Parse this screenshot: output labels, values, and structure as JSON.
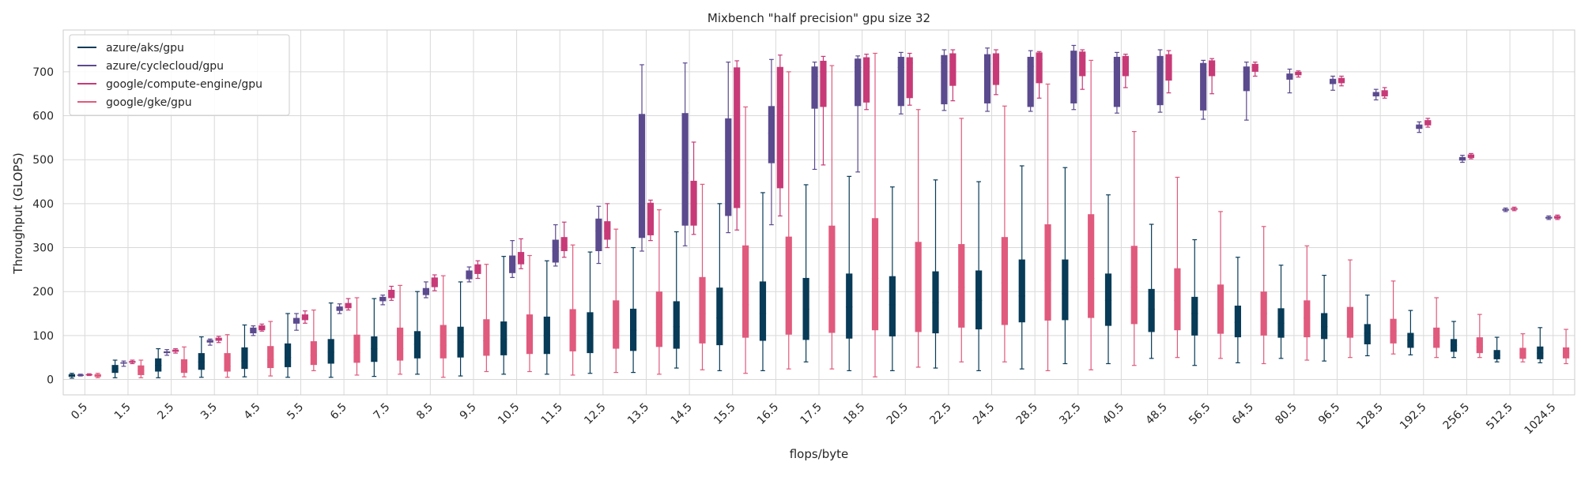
{
  "chart_data": {
    "type": "box",
    "title": "Mixbench \"half precision\" gpu size 32",
    "xlabel": "flops/byte",
    "ylabel": "Throughput (GLOPS)",
    "ylim": [
      -35,
      795
    ],
    "yticks": [
      0,
      100,
      200,
      300,
      400,
      500,
      600,
      700
    ],
    "grid": true,
    "legend_position": "top-left",
    "categories": [
      "0.5",
      "1.5",
      "2.5",
      "3.5",
      "4.5",
      "5.5",
      "6.5",
      "7.5",
      "8.5",
      "9.5",
      "10.5",
      "11.5",
      "12.5",
      "13.5",
      "14.5",
      "15.5",
      "16.5",
      "17.5",
      "18.5",
      "20.5",
      "22.5",
      "24.5",
      "28.5",
      "32.5",
      "40.5",
      "48.5",
      "56.5",
      "64.5",
      "80.5",
      "96.5",
      "128.5",
      "192.5",
      "256.5",
      "512.5",
      "1024.5"
    ],
    "series": [
      {
        "name": "azure/aks/gpu",
        "color": "#073b57",
        "boxes": [
          [
            3,
            6,
            8,
            12,
            14
          ],
          [
            4,
            15,
            25,
            33,
            44
          ],
          [
            4,
            18,
            32,
            48,
            70
          ],
          [
            5,
            22,
            40,
            60,
            97
          ],
          [
            6,
            24,
            42,
            73,
            124
          ],
          [
            5,
            28,
            50,
            82,
            150
          ],
          [
            5,
            36,
            62,
            92,
            174
          ],
          [
            7,
            40,
            70,
            98,
            184
          ],
          [
            12,
            48,
            80,
            110,
            200
          ],
          [
            8,
            50,
            85,
            120,
            222
          ],
          [
            12,
            55,
            92,
            132,
            280
          ],
          [
            12,
            58,
            100,
            143,
            270
          ],
          [
            14,
            60,
            105,
            153,
            290
          ],
          [
            16,
            65,
            112,
            161,
            300
          ],
          [
            26,
            70,
            120,
            178,
            336
          ],
          [
            20,
            78,
            140,
            209,
            400
          ],
          [
            20,
            88,
            150,
            223,
            425
          ],
          [
            40,
            90,
            160,
            231,
            443
          ],
          [
            20,
            93,
            165,
            241,
            462
          ],
          [
            20,
            98,
            170,
            235,
            438
          ],
          [
            26,
            105,
            175,
            246,
            454
          ],
          [
            20,
            114,
            180,
            248,
            450
          ],
          [
            24,
            130,
            190,
            273,
            486
          ],
          [
            36,
            135,
            195,
            273,
            482
          ],
          [
            36,
            122,
            180,
            241,
            420
          ],
          [
            48,
            108,
            160,
            206,
            353
          ],
          [
            32,
            100,
            150,
            188,
            318
          ],
          [
            38,
            96,
            130,
            168,
            278
          ],
          [
            48,
            95,
            128,
            162,
            260
          ],
          [
            42,
            92,
            120,
            151,
            237
          ],
          [
            54,
            80,
            105,
            126,
            192
          ],
          [
            56,
            72,
            90,
            106,
            157
          ],
          [
            50,
            63,
            78,
            92,
            132
          ],
          [
            40,
            46,
            55,
            67,
            96
          ],
          [
            38,
            46,
            60,
            75,
            118
          ]
        ]
      },
      {
        "name": "azure/cyclecloud/gpu",
        "color": "#5b4a8e",
        "boxes": [
          [
            8,
            9,
            10,
            11,
            12
          ],
          [
            30,
            36,
            38,
            39,
            42
          ],
          [
            55,
            60,
            62,
            64,
            68
          ],
          [
            78,
            84,
            86,
            90,
            92
          ],
          [
            100,
            105,
            112,
            118,
            122
          ],
          [
            112,
            127,
            132,
            140,
            150
          ],
          [
            150,
            156,
            160,
            166,
            172
          ],
          [
            170,
            178,
            182,
            188,
            192
          ],
          [
            186,
            192,
            200,
            208,
            222
          ],
          [
            222,
            228,
            236,
            248,
            256
          ],
          [
            232,
            242,
            262,
            282,
            316
          ],
          [
            258,
            266,
            292,
            318,
            352
          ],
          [
            264,
            292,
            338,
            366,
            394
          ],
          [
            292,
            322,
            520,
            604,
            716
          ],
          [
            304,
            350,
            470,
            606,
            720
          ],
          [
            334,
            372,
            520,
            594,
            722
          ],
          [
            352,
            492,
            560,
            622,
            728
          ],
          [
            478,
            616,
            690,
            712,
            722
          ],
          [
            472,
            622,
            710,
            730,
            736
          ],
          [
            604,
            622,
            710,
            734,
            744
          ],
          [
            612,
            626,
            720,
            738,
            750
          ],
          [
            610,
            628,
            718,
            740,
            754
          ],
          [
            610,
            620,
            712,
            734,
            748
          ],
          [
            614,
            628,
            728,
            748,
            760
          ],
          [
            606,
            620,
            722,
            734,
            744
          ],
          [
            608,
            624,
            722,
            736,
            750
          ],
          [
            592,
            612,
            700,
            720,
            726
          ],
          [
            590,
            656,
            700,
            712,
            722
          ],
          [
            652,
            682,
            690,
            696,
            706
          ],
          [
            658,
            672,
            676,
            684,
            690
          ],
          [
            636,
            644,
            648,
            654,
            660
          ],
          [
            562,
            570,
            574,
            580,
            586
          ],
          [
            494,
            498,
            502,
            506,
            510
          ],
          [
            382,
            384,
            386,
            388,
            390
          ],
          [
            364,
            366,
            368,
            370,
            372
          ]
        ]
      },
      {
        "name": "google/compute-engine/gpu",
        "color": "#c73a77",
        "boxes": [
          [
            9,
            10,
            11,
            12,
            13
          ],
          [
            36,
            38,
            40,
            42,
            44
          ],
          [
            60,
            63,
            65,
            68,
            70
          ],
          [
            84,
            88,
            92,
            95,
            98
          ],
          [
            110,
            112,
            118,
            123,
            126
          ],
          [
            128,
            135,
            140,
            148,
            156
          ],
          [
            158,
            162,
            166,
            174,
            184
          ],
          [
            180,
            185,
            195,
            204,
            212
          ],
          [
            202,
            210,
            220,
            232,
            238
          ],
          [
            230,
            240,
            248,
            262,
            270
          ],
          [
            252,
            262,
            272,
            290,
            320
          ],
          [
            278,
            292,
            304,
            324,
            358
          ],
          [
            300,
            318,
            338,
            360,
            400
          ],
          [
            316,
            328,
            365,
            402,
            408
          ],
          [
            330,
            350,
            400,
            452,
            540
          ],
          [
            340,
            390,
            500,
            710,
            725
          ],
          [
            372,
            435,
            620,
            711,
            738
          ],
          [
            488,
            620,
            700,
            725,
            735
          ],
          [
            614,
            630,
            712,
            733,
            740
          ],
          [
            624,
            640,
            720,
            733,
            742
          ],
          [
            634,
            668,
            724,
            742,
            750
          ],
          [
            648,
            670,
            732,
            742,
            750
          ],
          [
            640,
            674,
            728,
            744,
            746
          ],
          [
            660,
            690,
            736,
            746,
            750
          ],
          [
            664,
            690,
            728,
            736,
            740
          ],
          [
            652,
            680,
            730,
            740,
            748
          ],
          [
            650,
            690,
            716,
            726,
            730
          ],
          [
            690,
            700,
            710,
            718,
            722
          ],
          [
            688,
            692,
            696,
            700,
            702
          ],
          [
            668,
            674,
            680,
            686,
            690
          ],
          [
            640,
            644,
            652,
            658,
            664
          ],
          [
            574,
            578,
            584,
            590,
            594
          ],
          [
            502,
            504,
            508,
            512,
            514
          ],
          [
            384,
            386,
            388,
            390,
            392
          ],
          [
            364,
            366,
            370,
            372,
            374
          ]
        ]
      },
      {
        "name": "google/gke/gpu",
        "color": "#e05a7d",
        "boxes": [
          [
            4,
            6,
            9,
            12,
            14
          ],
          [
            4,
            10,
            20,
            32,
            44
          ],
          [
            6,
            15,
            26,
            46,
            74
          ],
          [
            5,
            18,
            30,
            60,
            102
          ],
          [
            8,
            26,
            45,
            76,
            132
          ],
          [
            20,
            33,
            55,
            87,
            158
          ],
          [
            10,
            38,
            62,
            102,
            186
          ],
          [
            12,
            43,
            70,
            118,
            214
          ],
          [
            5,
            48,
            78,
            124,
            236
          ],
          [
            18,
            54,
            88,
            137,
            262
          ],
          [
            18,
            58,
            95,
            148,
            282
          ],
          [
            10,
            64,
            100,
            160,
            306
          ],
          [
            16,
            70,
            110,
            180,
            342
          ],
          [
            12,
            74,
            130,
            200,
            386
          ],
          [
            22,
            82,
            150,
            233,
            444
          ],
          [
            14,
            95,
            170,
            305,
            620
          ],
          [
            24,
            102,
            200,
            325,
            700
          ],
          [
            24,
            106,
            210,
            350,
            714
          ],
          [
            6,
            112,
            230,
            367,
            742
          ],
          [
            28,
            108,
            200,
            313,
            614
          ],
          [
            40,
            118,
            210,
            308,
            594
          ],
          [
            40,
            124,
            220,
            324,
            622
          ],
          [
            20,
            134,
            225,
            353,
            672
          ],
          [
            22,
            140,
            230,
            376,
            726
          ],
          [
            32,
            126,
            210,
            304,
            564
          ],
          [
            50,
            112,
            180,
            253,
            460
          ],
          [
            48,
            104,
            160,
            216,
            382
          ],
          [
            36,
            100,
            150,
            200,
            348
          ],
          [
            44,
            96,
            140,
            180,
            304
          ],
          [
            50,
            95,
            130,
            165,
            272
          ],
          [
            58,
            82,
            110,
            138,
            224
          ],
          [
            50,
            72,
            95,
            118,
            186
          ],
          [
            50,
            60,
            75,
            96,
            148
          ],
          [
            40,
            47,
            58,
            72,
            104
          ],
          [
            36,
            48,
            60,
            73,
            114
          ]
        ]
      }
    ]
  }
}
